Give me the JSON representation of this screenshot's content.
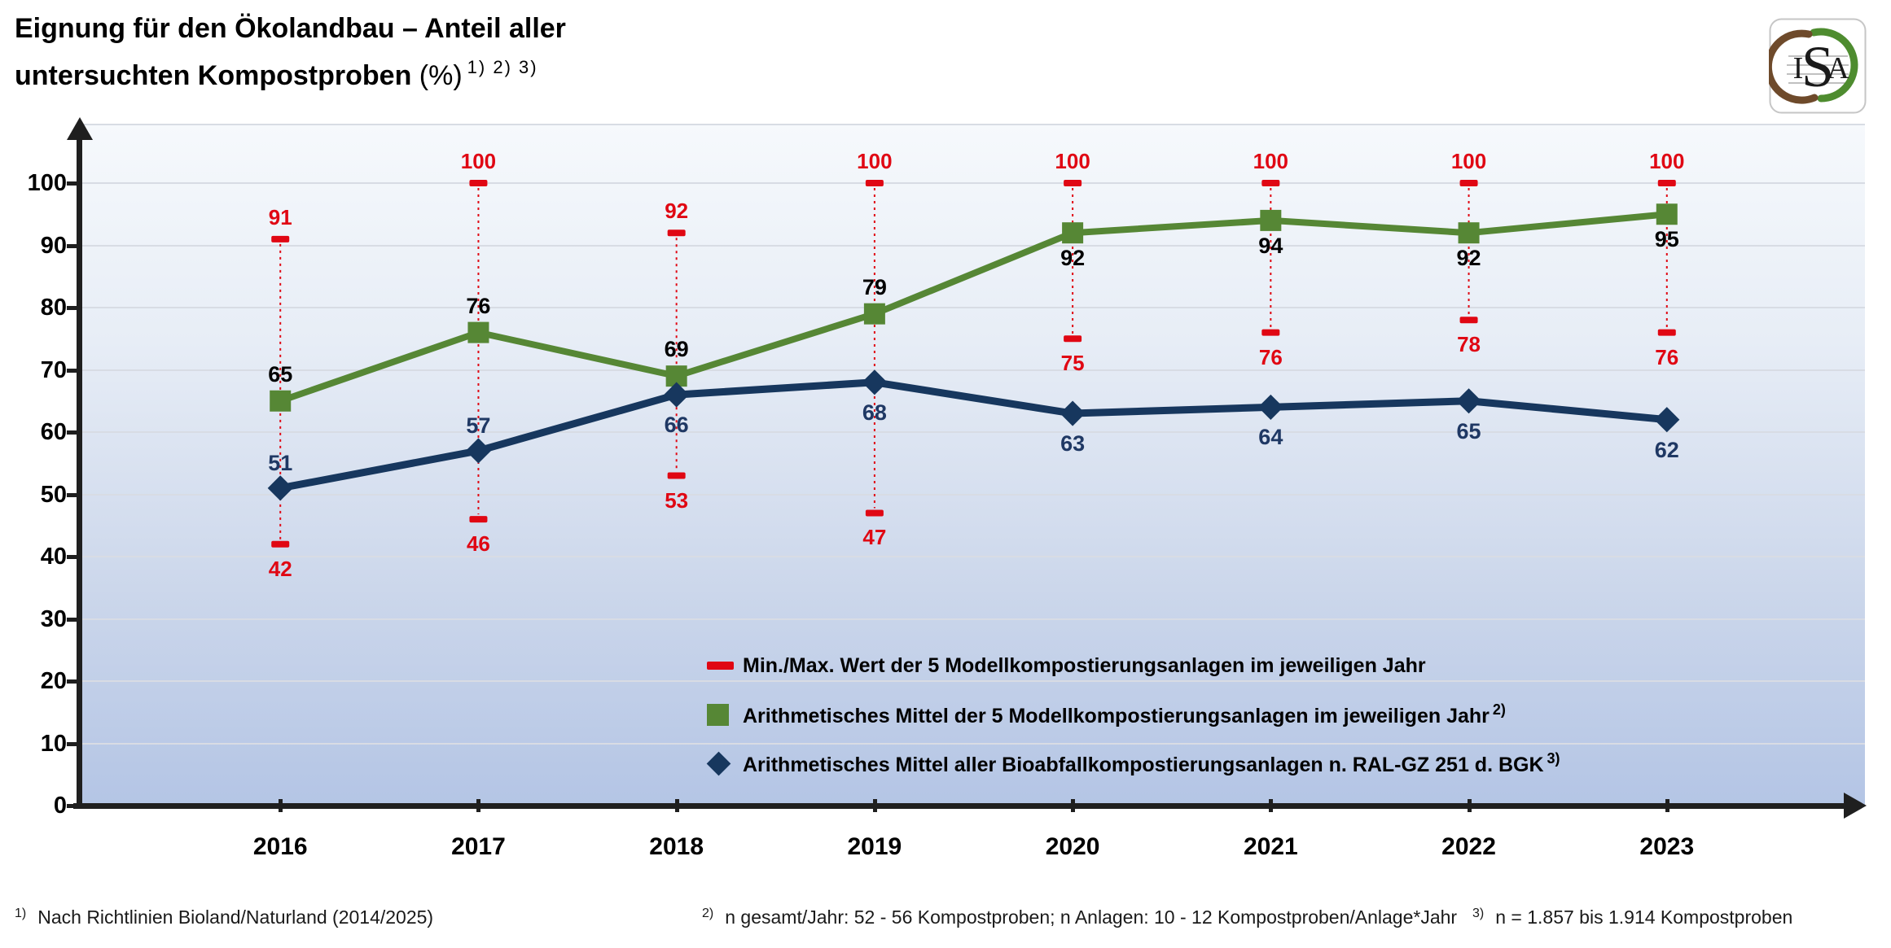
{
  "title": {
    "line1": "Eignung für den Ökolandbau – Anteil aller",
    "line2_main": "untersuchten Kompostproben",
    "line2_unit": " (%)",
    "line2_sup": "1) 2) 3)"
  },
  "logo": {
    "letter_i": "I",
    "letter_s": "S",
    "letter_a": "A",
    "green": "#4e8c2f",
    "brown": "#6e4a2b"
  },
  "chart_data": {
    "type": "line",
    "title": "Eignung für den Ökolandbau – Anteil aller untersuchten Kompostproben (%)",
    "categories": [
      "2016",
      "2017",
      "2018",
      "2019",
      "2020",
      "2021",
      "2022",
      "2023"
    ],
    "ylim": [
      0,
      110
    ],
    "yticks": [
      0,
      10,
      20,
      30,
      40,
      50,
      60,
      70,
      80,
      90,
      100
    ],
    "grid": true,
    "legend_position": "inside-bottom",
    "series": [
      {
        "name": "Min./Max. Wert der 5 Modellkompostierungsanlagen im jeweiligen Jahr",
        "sup": "",
        "type": "minmax",
        "marker": "dash",
        "color": "#e00713",
        "label_color": "#e00713",
        "max": [
          91,
          100,
          92,
          100,
          100,
          100,
          100,
          100
        ],
        "min": [
          42,
          46,
          53,
          47,
          75,
          76,
          78,
          76
        ]
      },
      {
        "name": "Arithmetisches Mittel der 5 Modellkompostierungsanlagen im jeweiligen Jahr",
        "sup": "2)",
        "type": "line",
        "marker": "square",
        "color": "#568735",
        "label_color": "#000000",
        "values": [
          65,
          76,
          69,
          79,
          92,
          94,
          92,
          95
        ],
        "label_side": [
          "above",
          "above",
          "above",
          "above",
          "below",
          "below",
          "below",
          "below"
        ]
      },
      {
        "name": "Arithmetisches Mittel aller Bioabfallkompostierungsanlagen n. RAL-GZ 251 d. BGK",
        "sup": "3)",
        "type": "line",
        "marker": "diamond",
        "color": "#17375e",
        "label_color": "#1f3864",
        "values": [
          51,
          57,
          66,
          68,
          63,
          64,
          65,
          62
        ],
        "label_side": [
          "above",
          "above",
          "below",
          "below",
          "below",
          "below",
          "below",
          "below"
        ]
      }
    ]
  },
  "footnotes": [
    {
      "sup": "1)",
      "text": "Nach Richtlinien Bioland/Naturland (2014/2025)"
    },
    {
      "sup": "2)",
      "text": "n gesamt/Jahr: 52 - 56 Kompostproben; n Anlagen: 10 - 12 Kompostproben/Anlage*Jahr"
    },
    {
      "sup": "3)",
      "text": "n = 1.857 bis 1.914 Kompostproben"
    }
  ]
}
